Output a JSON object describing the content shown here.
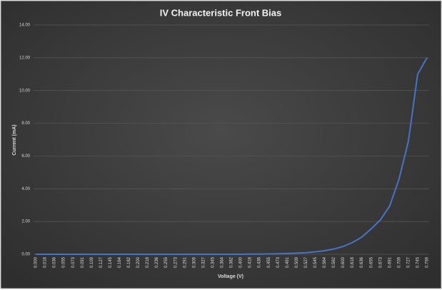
{
  "chart_data": {
    "type": "line",
    "title": "IV Characteristic Front Bias",
    "x_label": "Voltage (V)",
    "y_label": "Current (mA)",
    "categories": [
      "0.000",
      "0.018",
      "0.036",
      "0.055",
      "0.073",
      "0.091",
      "0.109",
      "0.127",
      "0.145",
      "0.164",
      "0.182",
      "0.200",
      "0.218",
      "0.236",
      "0.255",
      "0.273",
      "0.291",
      "0.309",
      "0.327",
      "0.345",
      "0.364",
      "0.382",
      "0.400",
      "0.418",
      "0.436",
      "0.455",
      "0.473",
      "0.491",
      "0.509",
      "0.527",
      "0.545",
      "0.564",
      "0.582",
      "0.600",
      "0.618",
      "0.636",
      "0.655",
      "0.673",
      "0.691",
      "0.709",
      "0.727",
      "0.745",
      "0.759"
    ],
    "values": [
      0,
      0,
      0,
      0,
      0,
      0,
      0,
      0,
      0,
      0,
      0,
      0,
      0,
      0,
      0,
      0,
      0,
      0,
      0,
      0,
      0,
      0,
      0,
      0.01,
      0.01,
      0.02,
      0.03,
      0.05,
      0.07,
      0.1,
      0.15,
      0.22,
      0.32,
      0.48,
      0.72,
      1.05,
      1.55,
      2.1,
      2.95,
      4.6,
      6.9,
      11.0,
      12.0
    ],
    "color": "#4a72c4",
    "ylim": [
      0,
      14
    ],
    "yticks": [
      {
        "value": 0,
        "label": "0.00"
      },
      {
        "value": 2,
        "label": "2.00"
      },
      {
        "value": 4,
        "label": "4.00"
      },
      {
        "value": 6,
        "label": "6.00"
      },
      {
        "value": 8,
        "label": "8.00"
      },
      {
        "value": 10,
        "label": "10.00"
      },
      {
        "value": 12,
        "label": "12.00"
      },
      {
        "value": 14,
        "label": "14.00"
      }
    ],
    "grid": true
  }
}
